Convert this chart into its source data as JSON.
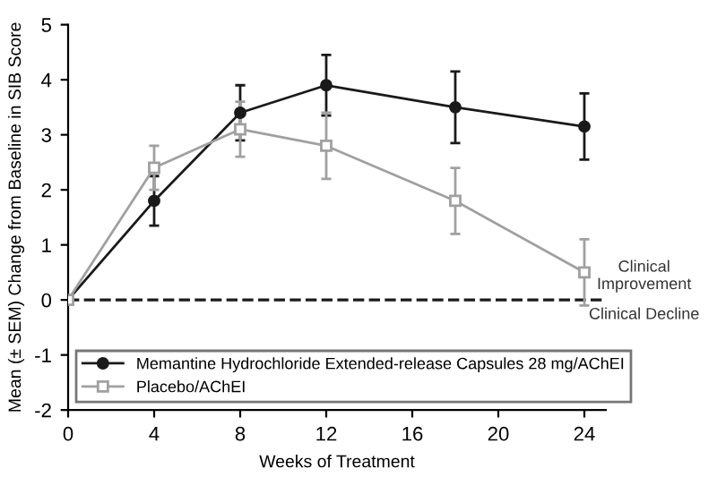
{
  "chart_data": {
    "type": "line",
    "xlabel": "Weeks of Treatment",
    "ylabel": "Mean (± SEM) Change from Baseline in SIB Score",
    "x": [
      0,
      4,
      8,
      12,
      18,
      24
    ],
    "series": [
      {
        "name": "Memantine Hydrochloride Extended-release Capsules 28 mg/AChEI",
        "color": "#1a1a1a",
        "marker": "circle",
        "values": [
          0,
          1.8,
          3.4,
          3.9,
          3.5,
          3.15
        ],
        "errors": [
          null,
          0.45,
          0.5,
          0.55,
          0.65,
          0.6
        ]
      },
      {
        "name": "Placebo/AChEI",
        "color": "#a0a0a0",
        "marker": "square",
        "values": [
          0,
          2.4,
          3.1,
          2.8,
          1.8,
          0.5
        ],
        "errors": [
          null,
          0.4,
          0.5,
          0.6,
          0.6,
          0.6
        ]
      }
    ],
    "xlim": [
      0,
      25
    ],
    "xticks": [
      0,
      4,
      8,
      12,
      16,
      20,
      24
    ],
    "ylim": [
      -2,
      5
    ],
    "yticks": [
      -2,
      -1,
      0,
      1,
      2,
      3,
      4,
      5
    ],
    "ref_lines": [
      {
        "axis": "y",
        "value": 0,
        "color": "#1a1a1a",
        "line_style": "dashed"
      }
    ],
    "annotations": [
      {
        "text": "Clinical\nImprovement",
        "x": 24,
        "y": 0
      },
      {
        "text": "Clinical Decline",
        "x": 24,
        "y": 0
      }
    ],
    "grid": false,
    "legend": "bottom left",
    "line_style": "solid"
  }
}
